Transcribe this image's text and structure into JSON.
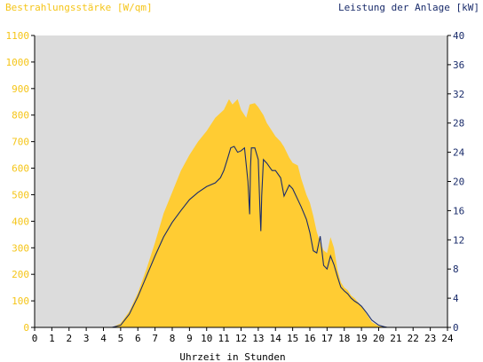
{
  "chart_data": {
    "type": "area",
    "title_left": "Bestrahlungsstärke [W/qm]",
    "title_right": "Leistung der Anlage [kW]",
    "xlabel": "Uhrzeit in Stunden",
    "xlim": [
      0,
      24
    ],
    "x_ticks": [
      "0",
      "1",
      "2",
      "3",
      "4",
      "5",
      "6",
      "7",
      "8",
      "9",
      "10",
      "11",
      "12",
      "13",
      "14",
      "15",
      "16",
      "17",
      "18",
      "19",
      "20",
      "21",
      "22",
      "23",
      "24"
    ],
    "y_left": {
      "lim": [
        0,
        1100
      ],
      "ticks": [
        "0",
        "100",
        "200",
        "300",
        "400",
        "500",
        "600",
        "700",
        "800",
        "900",
        "1000",
        "1100"
      ]
    },
    "y_right": {
      "lim": [
        0,
        40
      ],
      "ticks": [
        "0",
        "4",
        "8",
        "12",
        "16",
        "20",
        "24",
        "28",
        "32",
        "36",
        "40"
      ]
    },
    "grid": false,
    "colors": {
      "plot_bg": "#dcdcdc",
      "irradiance": "#ffcc33",
      "power": "#1a2c6b",
      "left_axis_text": "#f5c518",
      "right_axis_text": "#1a2c6b"
    },
    "series": [
      {
        "axis": "left",
        "kind": "area",
        "x": [
          0,
          4.5,
          5,
          5.5,
          6,
          6.5,
          7,
          7.5,
          8,
          8.5,
          9,
          9.5,
          10,
          10.5,
          11,
          11.3,
          11.5,
          11.8,
          12,
          12.3,
          12.5,
          12.8,
          13,
          13.3,
          13.5,
          13.8,
          14,
          14.3,
          14.5,
          14.8,
          15,
          15.3,
          15.5,
          15.8,
          16,
          16.2,
          16.4,
          16.6,
          16.8,
          17,
          17.2,
          17.4,
          17.6,
          17.8,
          18,
          18.2,
          18.4,
          18.6,
          18.8,
          19,
          19.3,
          19.6,
          20,
          20.3,
          20.5,
          21,
          24
        ],
        "y": [
          0,
          0,
          15,
          60,
          130,
          220,
          320,
          430,
          510,
          590,
          650,
          700,
          740,
          790,
          820,
          860,
          840,
          860,
          820,
          790,
          840,
          845,
          830,
          800,
          770,
          740,
          720,
          700,
          680,
          640,
          620,
          610,
          560,
          500,
          470,
          420,
          360,
          320,
          290,
          280,
          340,
          300,
          220,
          170,
          150,
          140,
          120,
          110,
          95,
          80,
          50,
          20,
          5,
          2,
          0,
          0,
          0
        ]
      },
      {
        "axis": "right",
        "kind": "line",
        "x": [
          0,
          4.5,
          5,
          5.5,
          6,
          6.5,
          7,
          7.5,
          8,
          8.5,
          9,
          9.5,
          10,
          10.5,
          10.8,
          11,
          11.2,
          11.4,
          11.6,
          11.8,
          12,
          12.2,
          12.4,
          12.5,
          12.55,
          12.6,
          12.8,
          13,
          13.1,
          13.15,
          13.2,
          13.3,
          13.5,
          13.8,
          14,
          14.3,
          14.5,
          14.8,
          15,
          15.3,
          15.5,
          15.8,
          16,
          16.2,
          16.4,
          16.6,
          16.8,
          17,
          17.2,
          17.4,
          17.6,
          17.8,
          18,
          18.2,
          18.4,
          18.6,
          18.8,
          19,
          19.3,
          19.6,
          20,
          20.3,
          20.5,
          21,
          24
        ],
        "y": [
          0,
          0,
          0.3,
          1.8,
          4.2,
          7,
          9.8,
          12.4,
          14.4,
          16,
          17.5,
          18.5,
          19.3,
          19.8,
          20.5,
          21.5,
          23,
          24.6,
          24.8,
          24,
          24.2,
          24.6,
          20,
          15.5,
          22,
          24.6,
          24.6,
          23,
          16,
          13.2,
          18,
          23,
          22.5,
          21.5,
          21.5,
          20.5,
          18,
          19.5,
          19,
          17.5,
          16.5,
          14.8,
          13,
          10.5,
          10.2,
          12.5,
          8.5,
          8,
          9.8,
          8.6,
          7,
          5.5,
          5,
          4.6,
          4,
          3.6,
          3.3,
          2.9,
          2,
          1,
          0.3,
          0.1,
          0,
          0,
          0
        ]
      }
    ]
  }
}
